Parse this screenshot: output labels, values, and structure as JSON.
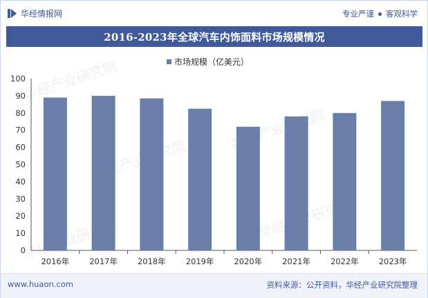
{
  "header": {
    "logo_text": "华经情报网",
    "tagline_left": "专业严谨",
    "tagline_right": "客观科学"
  },
  "title": "2016-2023年全球汽车内饰面料市场规模情况",
  "chart_data": {
    "type": "bar",
    "categories": [
      "2016年",
      "2017年",
      "2018年",
      "2019年",
      "2020年",
      "2021年",
      "2022年",
      "2023年"
    ],
    "series": [
      {
        "name": "市场规模（亿美元）",
        "values": [
          89,
          90,
          88.5,
          82.5,
          72,
          78,
          80,
          87
        ]
      }
    ],
    "ylim": [
      0,
      100
    ],
    "yticks": [
      0,
      10,
      20,
      30,
      40,
      50,
      60,
      70,
      80,
      90,
      100
    ],
    "grid": false,
    "legend_position": "top-center",
    "bar_color": "#6b7ea8"
  },
  "footer": {
    "website": "www.huaon.com",
    "source": "资料来源：公开资料，华经产业研究院整理"
  },
  "watermark": "华经产业研究院",
  "colors": {
    "brand": "#3e5a9a",
    "bar": "#6b7ea8"
  }
}
